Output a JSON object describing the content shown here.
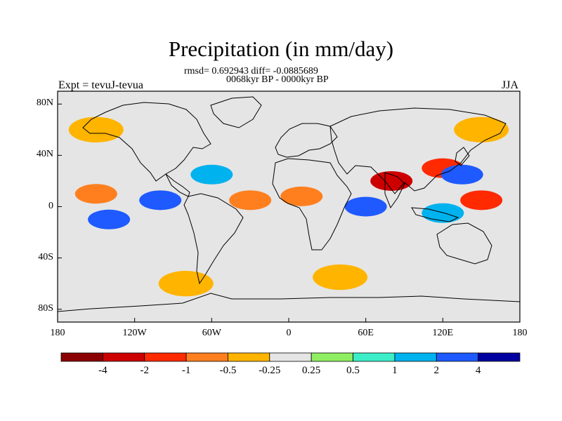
{
  "title": "Precipitation (in mm/day)",
  "stats_line": "rmsd= 0.692943 diff= -0.0885689",
  "period_line": "0068kyr BP - 0000kyr BP",
  "experiment_label": "Expt = tevuJ-tevua",
  "season_label": "JJA",
  "axes": {
    "lat_ticks": [
      "80N",
      "40N",
      "0",
      "40S",
      "80S"
    ],
    "lon_ticks": [
      "180",
      "120W",
      "60W",
      "0",
      "60E",
      "120E",
      "180"
    ]
  },
  "colorbar": {
    "levels": [
      "-4",
      "-2",
      "-1",
      "-0.5",
      "-0.25",
      "0.25",
      "0.5",
      "1",
      "2",
      "4"
    ],
    "colors": [
      "#8b0000",
      "#cd0000",
      "#ff2a00",
      "#ff7f1e",
      "#ffb400",
      "#e5e5e5",
      "#90ee62",
      "#3ceec8",
      "#00b2ee",
      "#1e5aff",
      "#0000a0"
    ]
  },
  "chart_data": {
    "type": "heatmap",
    "title": "Precipitation (in mm/day)",
    "xlim": [
      -180,
      180
    ],
    "ylim": [
      -90,
      90
    ],
    "units": "mm/day",
    "anomaly_regions": [
      {
        "lon": -150,
        "lat": 10,
        "value": -1
      },
      {
        "lon": -100,
        "lat": 5,
        "value": 2
      },
      {
        "lon": -60,
        "lat": 25,
        "value": 1
      },
      {
        "lon": -30,
        "lat": 5,
        "value": -1
      },
      {
        "lon": 10,
        "lat": 8,
        "value": -1
      },
      {
        "lon": 60,
        "lat": 0,
        "value": 2
      },
      {
        "lon": 80,
        "lat": 20,
        "value": -4
      },
      {
        "lon": 120,
        "lat": 30,
        "value": -2
      },
      {
        "lon": 135,
        "lat": 25,
        "value": 2
      },
      {
        "lon": 150,
        "lat": 5,
        "value": -2
      },
      {
        "lon": 120,
        "lat": -5,
        "value": 1
      },
      {
        "lon": -140,
        "lat": -10,
        "value": 2
      },
      {
        "lon": -150,
        "lat": 60,
        "value": -0.5
      },
      {
        "lon": 150,
        "lat": 60,
        "value": -0.5
      },
      {
        "lon": -80,
        "lat": -60,
        "value": -0.5
      },
      {
        "lon": 40,
        "lat": -55,
        "value": -0.5
      }
    ]
  }
}
